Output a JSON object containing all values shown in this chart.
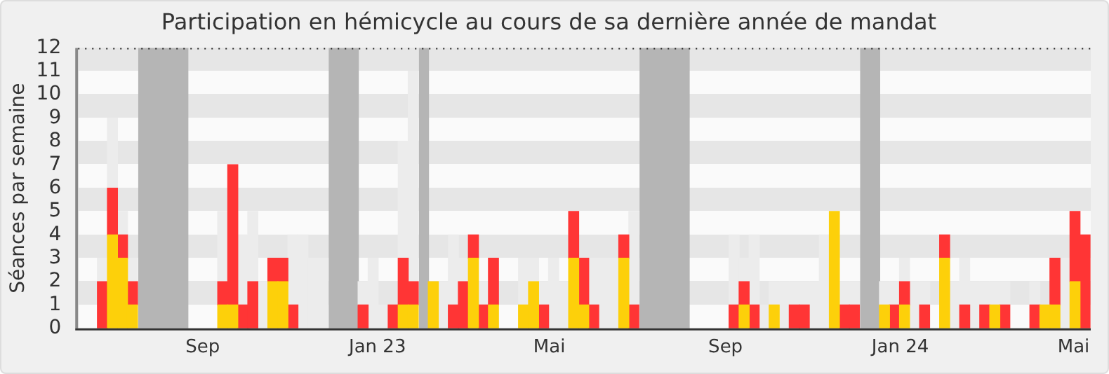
{
  "chart_data": {
    "type": "bar",
    "title": "Participation en hémicycle au cours de sa dernière année de mandat",
    "ylabel": "Séances par semaine",
    "stacked": true,
    "x": [
      "2022-06-23",
      "2022-06-30",
      "2022-07-07",
      "2022-07-14",
      "2022-07-21",
      "2022-07-28",
      "2022-08-04",
      "2022-08-11",
      "2022-08-18",
      "2022-08-25",
      "2022-09-01",
      "2022-09-08",
      "2022-09-15",
      "2022-09-22",
      "2022-09-29",
      "2022-10-06",
      "2022-10-13",
      "2022-10-20",
      "2022-10-27",
      "2022-11-03",
      "2022-11-10",
      "2022-11-17",
      "2022-11-24",
      "2022-12-01",
      "2022-12-08",
      "2022-12-15",
      "2022-12-22",
      "2022-12-29",
      "2023-01-05",
      "2023-01-12",
      "2023-01-19",
      "2023-01-26",
      "2023-02-02",
      "2023-02-09",
      "2023-02-16",
      "2023-02-23",
      "2023-03-02",
      "2023-03-09",
      "2023-03-16",
      "2023-03-23",
      "2023-03-30",
      "2023-04-06",
      "2023-04-13",
      "2023-04-20",
      "2023-04-27",
      "2023-05-04",
      "2023-05-11",
      "2023-05-18",
      "2023-05-25",
      "2023-06-01",
      "2023-06-08",
      "2023-06-15",
      "2023-06-22",
      "2023-06-29",
      "2023-07-06",
      "2023-07-13",
      "2023-07-20",
      "2023-07-27",
      "2023-08-03",
      "2023-08-10",
      "2023-08-17",
      "2023-08-24",
      "2023-08-31",
      "2023-09-07",
      "2023-09-14",
      "2023-09-21",
      "2023-09-28",
      "2023-10-05",
      "2023-10-12",
      "2023-10-19",
      "2023-10-26",
      "2023-11-02",
      "2023-11-09",
      "2023-11-16",
      "2023-11-23",
      "2023-11-30",
      "2023-12-07",
      "2023-12-14",
      "2023-12-21",
      "2023-12-28",
      "2024-01-04",
      "2024-01-11",
      "2024-01-18",
      "2024-01-25",
      "2024-02-01",
      "2024-02-08",
      "2024-02-15",
      "2024-02-22",
      "2024-02-29",
      "2024-03-07",
      "2024-03-14",
      "2024-03-21",
      "2024-03-28",
      "2024-04-04",
      "2024-04-11",
      "2024-04-18",
      "2024-04-25",
      "2024-05-02",
      "2024-05-09"
    ],
    "series": [
      {
        "color": "#fdd00a",
        "values": [
          null,
          4,
          3,
          1,
          null,
          null,
          null,
          null,
          null,
          null,
          null,
          null,
          1,
          1,
          null,
          null,
          null,
          2,
          2,
          null,
          null,
          null,
          null,
          null,
          null,
          null,
          null,
          null,
          null,
          null,
          1,
          1,
          null,
          2,
          null,
          null,
          null,
          3,
          null,
          1,
          null,
          null,
          1,
          2,
          null,
          null,
          null,
          3,
          1,
          null,
          null,
          null,
          3,
          null,
          null,
          null,
          null,
          null,
          null,
          null,
          null,
          null,
          null,
          null,
          1,
          null,
          null,
          1,
          null,
          null,
          null,
          null,
          null,
          5,
          null,
          null,
          null,
          null,
          1,
          null,
          1,
          null,
          null,
          null,
          3,
          null,
          null,
          null,
          null,
          1,
          null,
          null,
          null,
          null,
          1,
          1,
          null,
          2,
          null
        ]
      },
      {
        "color": "#ff3535",
        "values": [
          2,
          2,
          1,
          1,
          null,
          null,
          null,
          null,
          null,
          null,
          null,
          null,
          1,
          6,
          1,
          2,
          null,
          1,
          1,
          1,
          null,
          null,
          null,
          null,
          null,
          null,
          1,
          null,
          null,
          1,
          2,
          1,
          null,
          null,
          null,
          1,
          2,
          1,
          1,
          2,
          null,
          null,
          null,
          null,
          1,
          null,
          null,
          2,
          2,
          1,
          null,
          null,
          1,
          1,
          null,
          null,
          null,
          null,
          null,
          null,
          null,
          null,
          null,
          1,
          1,
          1,
          null,
          null,
          null,
          1,
          1,
          null,
          null,
          null,
          1,
          1,
          null,
          null,
          null,
          1,
          1,
          null,
          1,
          null,
          1,
          null,
          1,
          null,
          1,
          null,
          1,
          null,
          null,
          1,
          null,
          2,
          null,
          3,
          4
        ]
      },
      {
        "color": "#ececec",
        "values": [
          1,
          3,
          1,
          1,
          null,
          null,
          null,
          null,
          null,
          null,
          null,
          null,
          3,
          null,
          3,
          3,
          2,
          null,
          null,
          3,
          4,
          3,
          3,
          null,
          null,
          null,
          1,
          3,
          1,
          null,
          5,
          9,
          null,
          null,
          2,
          3,
          1,
          null,
          1,
          null,
          null,
          null,
          2,
          1,
          1,
          3,
          2,
          null,
          null,
          2,
          3,
          3,
          null,
          4,
          null,
          null,
          null,
          null,
          null,
          null,
          null,
          null,
          null,
          3,
          1,
          3,
          1,
          1,
          2,
          1,
          1,
          2,
          4,
          null,
          1,
          1,
          null,
          null,
          1,
          1,
          1,
          2,
          1,
          null,
          null,
          2,
          2,
          2,
          1,
          1,
          1,
          null,
          null,
          1,
          null,
          null,
          3,
          null,
          null
        ]
      }
    ],
    "bands": [
      {
        "axis": "x",
        "from": "2022-07-18",
        "to": "2022-08-22",
        "color": "#b5b5b5"
      },
      {
        "axis": "x",
        "from": "2022-11-28",
        "to": "2022-12-19",
        "color": "#b5b5b5"
      },
      {
        "axis": "x",
        "from": "2023-01-30",
        "to": "2023-02-06",
        "color": "#b5b5b5"
      },
      {
        "axis": "x",
        "from": "2023-07-03",
        "to": "2023-08-07",
        "color": "#b5b5b5"
      },
      {
        "axis": "x",
        "from": "2023-12-04",
        "to": "2023-12-18",
        "color": "#b5b5b5"
      }
    ],
    "xlim": [
      "2022-06-06",
      "2024-05-13"
    ],
    "xticks": [
      {
        "value": "2022-09-01",
        "label": "Sep"
      },
      {
        "value": "2023-01-01",
        "label": "Jan 23"
      },
      {
        "value": "2023-05-01",
        "label": "Mai"
      },
      {
        "value": "2023-09-01",
        "label": "Sep"
      },
      {
        "value": "2024-01-01",
        "label": "Jan 24"
      },
      {
        "value": "2024-05-01",
        "label": "Mai"
      }
    ],
    "ylim": [
      0,
      12
    ],
    "yticks": [
      0,
      1,
      2,
      3,
      4,
      5,
      6,
      7,
      8,
      9,
      10,
      11,
      12
    ],
    "legend": false
  }
}
